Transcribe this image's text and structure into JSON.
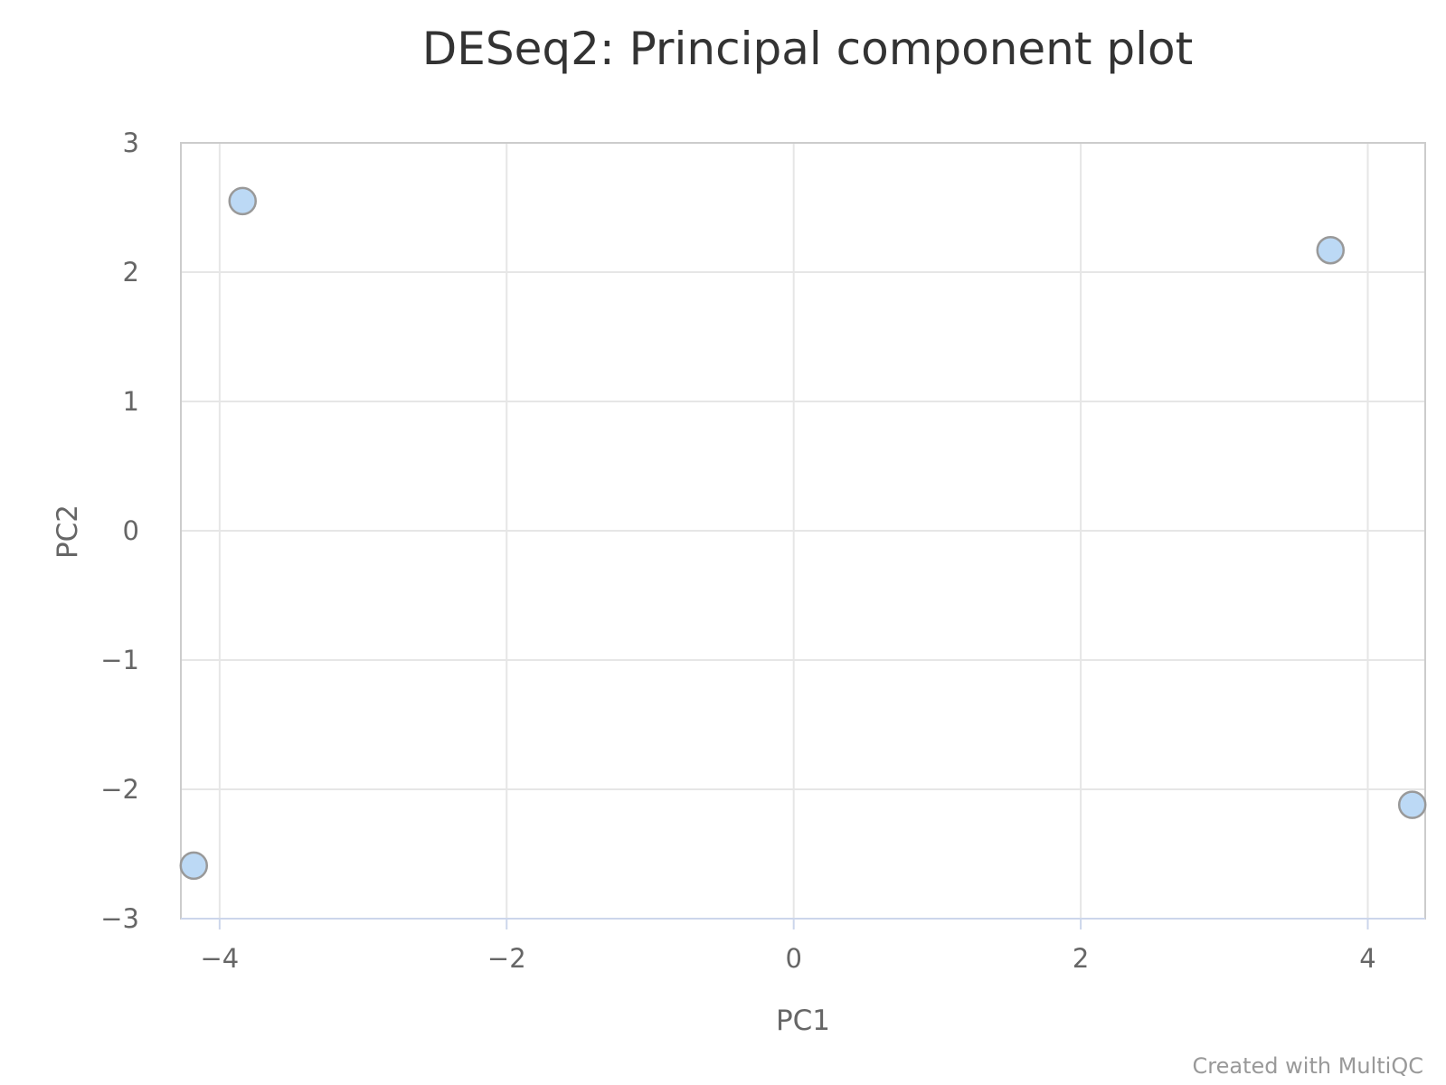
{
  "chart_data": {
    "type": "scatter",
    "title": "DESeq2: Principal component plot",
    "xlabel": "PC1",
    "ylabel": "PC2",
    "xlim": [
      -4.27,
      4.4
    ],
    "ylim": [
      -3,
      3
    ],
    "x_ticks": [
      -4,
      -2,
      0,
      2,
      4
    ],
    "y_ticks": [
      -3,
      -2,
      -1,
      0,
      1,
      2,
      3
    ],
    "x_tick_labels": [
      "−4",
      "−2",
      "0",
      "2",
      "4"
    ],
    "y_tick_labels": [
      "−3",
      "−2",
      "−1",
      "0",
      "1",
      "2",
      "3"
    ],
    "grid": true,
    "legend": "none",
    "point_color": "#bcd9f5",
    "point_border_color": "#999999",
    "points": [
      {
        "x": -3.84,
        "y": 2.55
      },
      {
        "x": 3.74,
        "y": 2.17
      },
      {
        "x": -4.18,
        "y": -2.59
      },
      {
        "x": 4.31,
        "y": -2.12
      }
    ]
  },
  "credit": "Created with MultiQC"
}
